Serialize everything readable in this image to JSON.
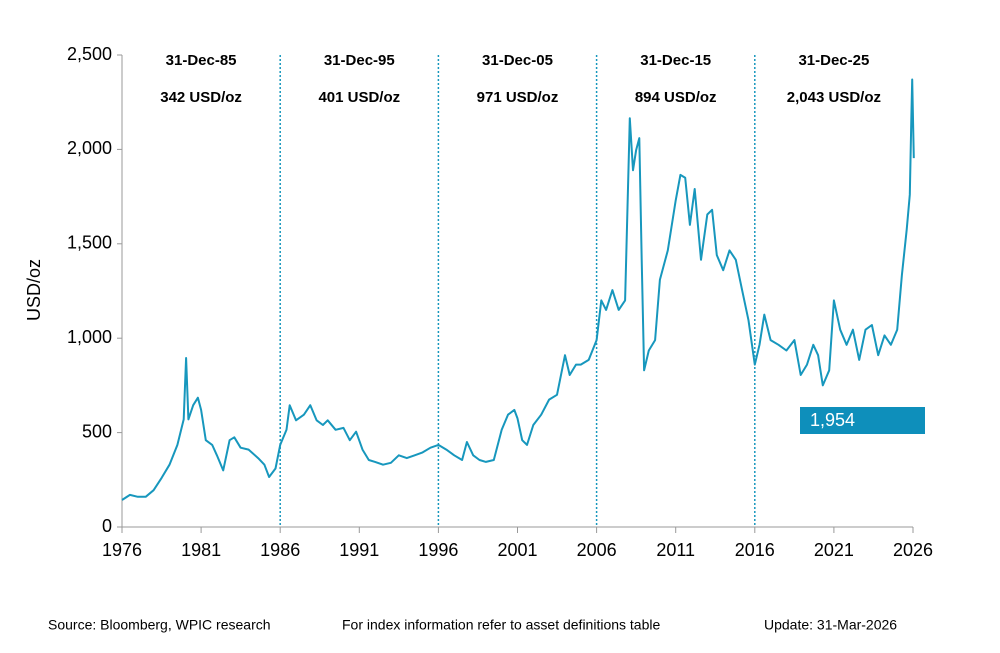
{
  "chart_data": {
    "type": "line",
    "y_label": "USD/oz",
    "color": "#1797bd",
    "x": [
      1976.0,
      1976.5,
      1977.0,
      1977.5,
      1978.0,
      1978.5,
      1979.0,
      1979.5,
      1979.9,
      1980.05,
      1980.2,
      1980.5,
      1980.8,
      1981.0,
      1981.3,
      1981.7,
      1982.0,
      1982.4,
      1982.8,
      1983.1,
      1983.5,
      1984.0,
      1984.6,
      1985.0,
      1985.3,
      1985.7,
      1986.0,
      1986.4,
      1986.6,
      1987.0,
      1987.5,
      1987.9,
      1988.3,
      1988.7,
      1989.0,
      1989.5,
      1990.0,
      1990.4,
      1990.8,
      1991.2,
      1991.6,
      1992.0,
      1992.5,
      1993.0,
      1993.5,
      1994.0,
      1994.5,
      1995.0,
      1995.5,
      1996.0,
      1996.5,
      1997.0,
      1997.5,
      1997.8,
      1998.2,
      1998.6,
      1999.0,
      1999.5,
      2000.0,
      2000.4,
      2000.8,
      2001.0,
      2001.3,
      2001.6,
      2002.0,
      2002.5,
      2003.0,
      2003.5,
      2004.0,
      2004.3,
      2004.7,
      2005.0,
      2005.5,
      2006.0,
      2006.3,
      2006.6,
      2007.0,
      2007.4,
      2007.8,
      2008.1,
      2008.3,
      2008.5,
      2008.7,
      2008.85,
      2009.0,
      2009.3,
      2009.7,
      2010.0,
      2010.5,
      2011.0,
      2011.3,
      2011.6,
      2011.9,
      2012.2,
      2012.6,
      2013.0,
      2013.3,
      2013.6,
      2014.0,
      2014.4,
      2014.8,
      2015.2,
      2015.6,
      2016.0,
      2016.3,
      2016.6,
      2017.0,
      2017.5,
      2018.0,
      2018.5,
      2018.9,
      2019.3,
      2019.7,
      2020.0,
      2020.3,
      2020.7,
      2021.0,
      2021.4,
      2021.8,
      2022.2,
      2022.6,
      2023.0,
      2023.4,
      2023.8,
      2024.2,
      2024.6,
      2025.0,
      2025.3,
      2025.6,
      2025.8,
      2025.9,
      2025.95,
      2026.05
    ],
    "values": [
      143,
      170,
      160,
      160,
      195,
      260,
      330,
      435,
      570,
      895,
      570,
      645,
      685,
      620,
      460,
      435,
      380,
      300,
      460,
      475,
      420,
      410,
      365,
      330,
      265,
      310,
      435,
      515,
      645,
      565,
      595,
      645,
      565,
      540,
      565,
      515,
      525,
      460,
      505,
      410,
      355,
      345,
      330,
      340,
      380,
      365,
      380,
      395,
      420,
      435,
      410,
      380,
      355,
      450,
      380,
      355,
      345,
      355,
      515,
      595,
      620,
      575,
      460,
      435,
      540,
      595,
      675,
      700,
      910,
      805,
      860,
      860,
      885,
      990,
      1200,
      1150,
      1255,
      1150,
      1200,
      2165,
      1890,
      1995,
      2060,
      1415,
      830,
      935,
      990,
      1310,
      1465,
      1730,
      1865,
      1850,
      1600,
      1790,
      1415,
      1655,
      1680,
      1440,
      1360,
      1465,
      1415,
      1255,
      1095,
      860,
      965,
      1125,
      990,
      965,
      935,
      990,
      805,
      860,
      965,
      910,
      750,
      830,
      1200,
      1045,
      965,
      1045,
      885,
      1045,
      1070,
      910,
      1015,
      965,
      1045,
      1335,
      1575,
      1760,
      2180,
      2370,
      1954
    ],
    "end_label": "1,954",
    "xlim": [
      1976,
      2026
    ],
    "xticks": [
      1976,
      1981,
      1986,
      1991,
      1996,
      2001,
      2006,
      2011,
      2016,
      2021,
      2026
    ],
    "ylim": [
      0,
      2500
    ],
    "yticks": [
      0,
      500,
      {
        "value": 1000,
        "label": "1,000"
      },
      {
        "value": 1500,
        "label": "1,500"
      },
      {
        "value": 2000,
        "label": "2,000"
      },
      {
        "value": 2500,
        "label": "2,500"
      }
    ],
    "vlines": [
      1986,
      1996,
      2006,
      2016
    ],
    "annotations": [
      {
        "date": "31-Dec-85",
        "label": "342 USD/oz"
      },
      {
        "date": "31-Dec-95",
        "label": "401 USD/oz"
      },
      {
        "date": "31-Dec-05",
        "label": "971 USD/oz"
      },
      {
        "date": "31-Dec-15",
        "label": "894 USD/oz"
      },
      {
        "date": "31-Dec-25",
        "label": "2,043 USD/oz"
      }
    ],
    "footer": {
      "source": "Source: Bloomberg, WPIC research",
      "note": "For index information refer to asset definitions table",
      "update": "Update: 31-Mar-2026"
    }
  }
}
